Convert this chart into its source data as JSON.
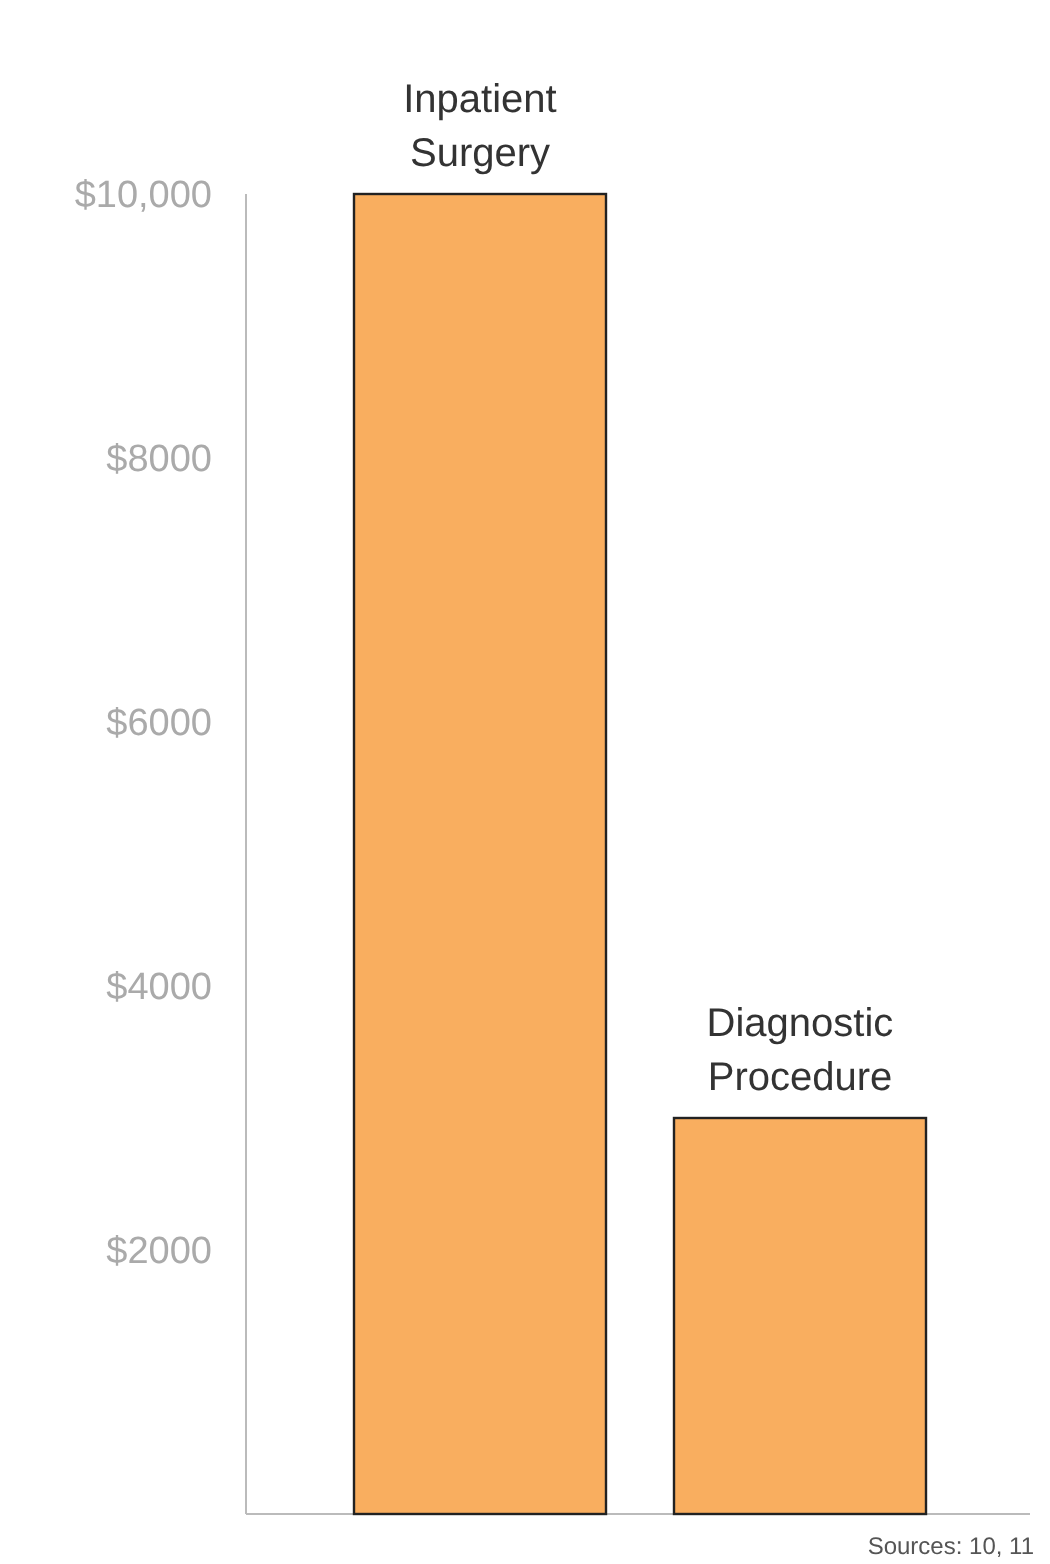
{
  "chart_data": {
    "type": "bar",
    "categories": [
      "Inpatient Surgery",
      "Diagnostic Procedure"
    ],
    "values": [
      10000,
      3000
    ],
    "color": "#f9ae5f",
    "ylim": [
      0,
      10000
    ],
    "yticks": [
      {
        "value": 2000,
        "label": "$2000"
      },
      {
        "value": 4000,
        "label": "$4000"
      },
      {
        "value": 6000,
        "label": "$6000"
      },
      {
        "value": 8000,
        "label": "$8000"
      },
      {
        "value": 10000,
        "label": "$10,000"
      }
    ],
    "grid": false,
    "annotations": [
      "Sources: 10, 11"
    ]
  }
}
